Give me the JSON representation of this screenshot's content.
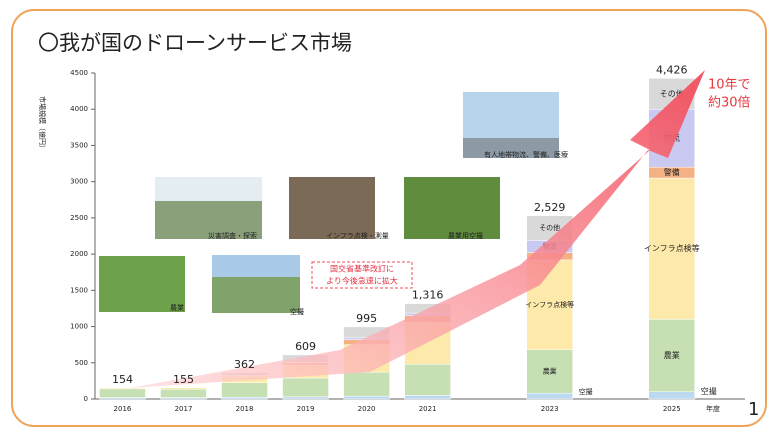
{
  "chart_data": {
    "type": "stacked_bar",
    "title": "〇我が国のドローンサービス市場",
    "y_label": "市場規模（億円）",
    "x_unit": "年度",
    "x": [
      2016,
      2017,
      2018,
      2019,
      2020,
      2021,
      2023,
      2025
    ],
    "xlim": [
      2015.55,
      2026.2
    ],
    "ylim": [
      0,
      4500
    ],
    "yticks": [
      0,
      500,
      1000,
      1500,
      2000,
      2500,
      3000,
      3500,
      4000,
      4500
    ],
    "series": [
      {
        "name": "空撮",
        "color": "#bcd9ef",
        "values": [
          20,
          20,
          25,
          30,
          40,
          50,
          80,
          100
        ]
      },
      {
        "name": "農業",
        "color": "#c6e0b4",
        "values": [
          120,
          115,
          200,
          260,
          330,
          430,
          600,
          1000
        ]
      },
      {
        "name": "インフラ点検等",
        "color": "#fde9a9",
        "values": [
          14,
          20,
          90,
          180,
          380,
          580,
          1240,
          1950
        ]
      },
      {
        "name": "警備",
        "color": "#f4b183",
        "values": [
          0,
          0,
          10,
          30,
          70,
          90,
          100,
          150
        ]
      },
      {
        "name": "物流",
        "color": "#c9c9f2",
        "values": [
          0,
          0,
          2,
          9,
          25,
          36,
          170,
          800
        ]
      },
      {
        "name": "その他",
        "color": "#d9d9d9",
        "values": [
          0,
          0,
          35,
          100,
          150,
          130,
          339,
          426
        ]
      }
    ],
    "totals": [
      154,
      155,
      362,
      609,
      995,
      1316,
      2529,
      4426
    ],
    "value_labels": [
      "154",
      "155",
      "362",
      "609",
      "995",
      "1,316",
      "2,529",
      "4,426"
    ],
    "annotations": {
      "growth": [
        "10年で",
        "約30倍"
      ],
      "policy": [
        "国交省基準改訂に",
        "より今後急速に拡大"
      ],
      "photos": [
        "農業",
        "空撮",
        "災害調査・探索",
        "インフラ点検・測量",
        "農業用空撮",
        "有人地帯物流、警備、医療"
      ]
    },
    "page_number": "1"
  }
}
